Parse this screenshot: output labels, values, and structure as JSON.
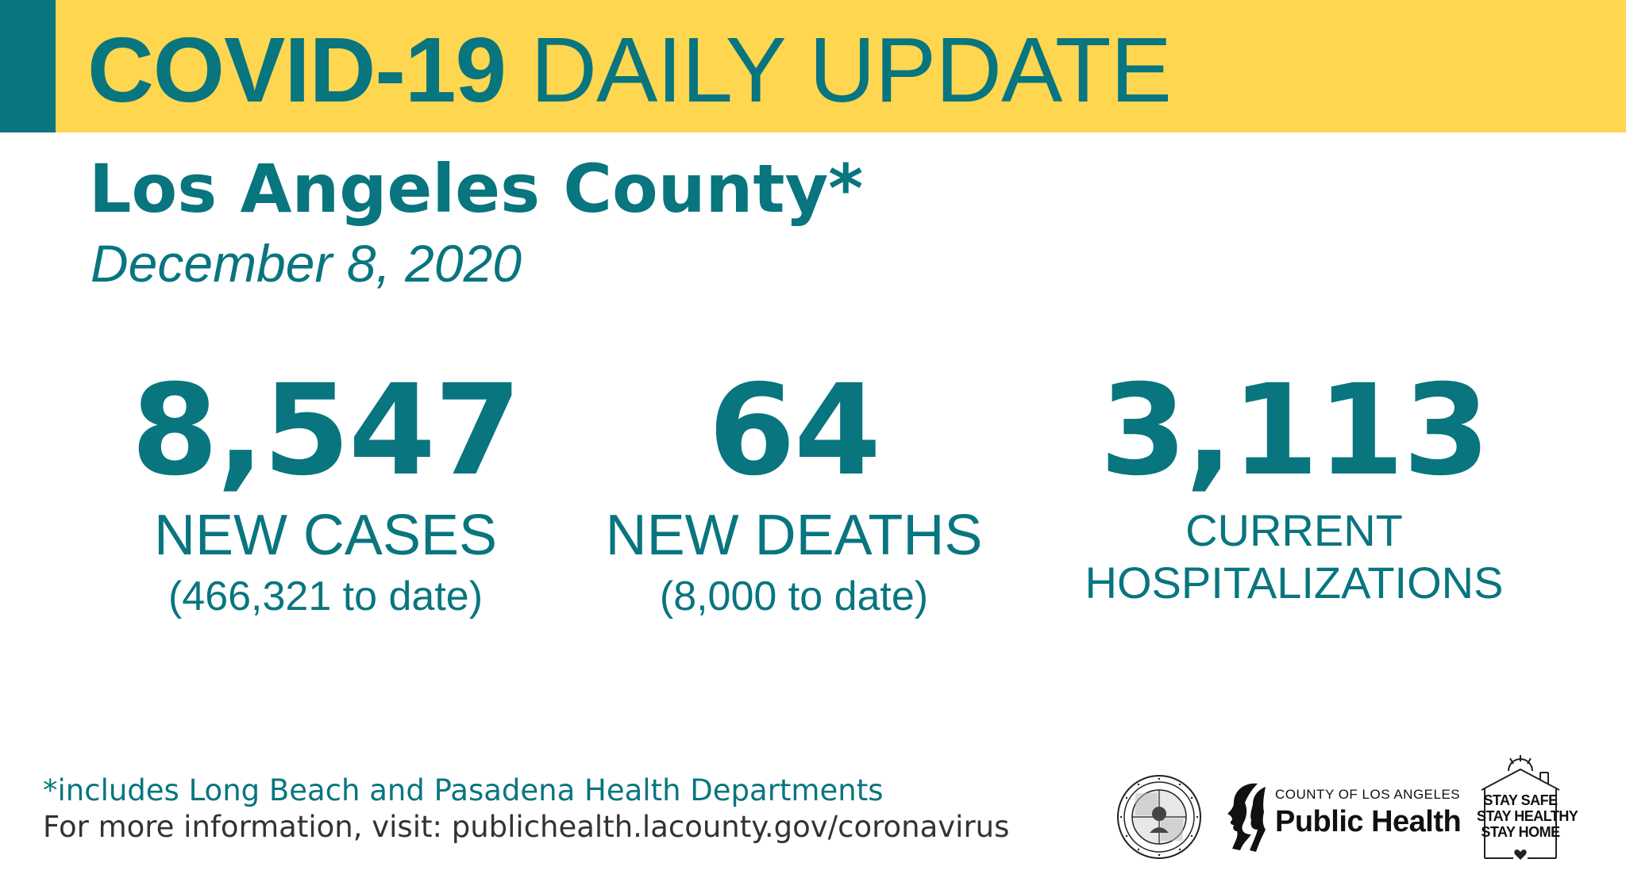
{
  "colors": {
    "banner_yellow": "#fed650",
    "teal": "#08757f",
    "dark_text": "#333333"
  },
  "header": {
    "title_bold": "COVID-19",
    "title_light": "DAILY UPDATE"
  },
  "location": "Los Angeles County*",
  "date": "December 8, 2020",
  "stats": {
    "cases": {
      "value": "8,547",
      "label": "NEW CASES",
      "to_date": "(466,321 to date)"
    },
    "deaths": {
      "value": "64",
      "label": "NEW DEATHS",
      "to_date": "(8,000 to date)"
    },
    "hospitalizations": {
      "value": "3,113",
      "label_line1": "CURRENT",
      "label_line2": "HOSPITALIZATIONS"
    }
  },
  "footer": {
    "footnote": "*includes Long Beach and Pasadena Health Departments",
    "more_info": "For more information, visit: publichealth.lacounty.gov/coronavirus"
  },
  "logos": {
    "seal_icon": "county-seal-icon",
    "public_health_small": "COUNTY OF LOS ANGELES",
    "public_health_big": "Public Health",
    "stay_safe": {
      "line1": "STAY SAFE",
      "line2": "STAY HEALTHY",
      "line3": "STAY HOME",
      "icon": "house-heart-icon"
    }
  }
}
